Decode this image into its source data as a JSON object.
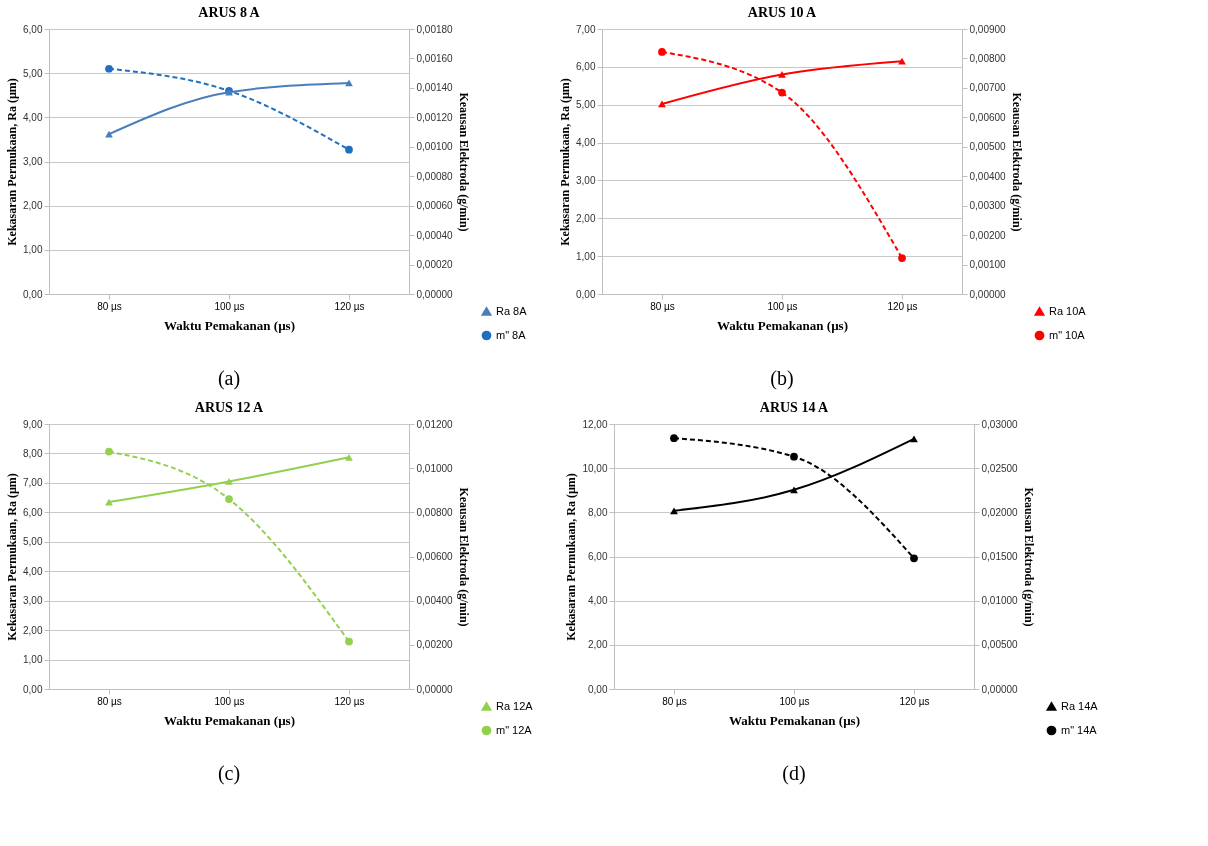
{
  "chart_data": [
    {
      "type": "line",
      "title": "ARUS 8 A",
      "xlabel": "Waktu Pemakanan (µs)",
      "ylabel": "Kekasaran Permukaan, Ra (µm)",
      "y2label": "Keausan Elektroda (g/min)",
      "categories": [
        "80 µs",
        "100 µs",
        "120 µs"
      ],
      "series": [
        {
          "name": "Ra 8A",
          "color": "#4a7ebb",
          "values": [
            3.62,
            4.57,
            4.78
          ],
          "marker": "triangle",
          "line_style": "solid"
        },
        {
          "name": "m\" 8A",
          "color": "#1f70c1",
          "values": [
            0.00153,
            0.00138,
            0.00098
          ],
          "axis": "y2",
          "marker": "circle",
          "line_style": "dashed"
        }
      ],
      "ylim": [
        0,
        6
      ],
      "yticks": [
        {
          "value": 0,
          "label": "0,00"
        },
        {
          "value": 1,
          "label": "1,00"
        },
        {
          "value": 2,
          "label": "2,00"
        },
        {
          "value": 3,
          "label": "3,00"
        },
        {
          "value": 4,
          "label": "4,00"
        },
        {
          "value": 5,
          "label": "5,00"
        },
        {
          "value": 6,
          "label": "6,00"
        }
      ],
      "y2lim": [
        0,
        0.0018
      ],
      "y2ticks": [
        {
          "value": 0,
          "label": "0,00000"
        },
        {
          "value": 0.0002,
          "label": "0,00020"
        },
        {
          "value": 0.0004,
          "label": "0,00040"
        },
        {
          "value": 0.0006,
          "label": "0,00060"
        },
        {
          "value": 0.0008,
          "label": "0,00080"
        },
        {
          "value": 0.001,
          "label": "0,00100"
        },
        {
          "value": 0.0012,
          "label": "0,00120"
        },
        {
          "value": 0.0014,
          "label": "0,00140"
        },
        {
          "value": 0.0016,
          "label": "0,00160"
        },
        {
          "value": 0.0018,
          "label": "0,00180"
        }
      ],
      "grid": "y",
      "legend": "bottom right",
      "annotations": [
        "(a)"
      ]
    },
    {
      "type": "line",
      "title": "ARUS 10 A",
      "xlabel": "Waktu Pemakanan (µs)",
      "ylabel": "Kekasaran Permukaan, Ra (µm)",
      "y2label": "Keausan Elektroda (g/min)",
      "categories": [
        "80 µs",
        "100 µs",
        "120 µs"
      ],
      "series": [
        {
          "name": "Ra 10A",
          "color": "#ff0000",
          "values": [
            5.02,
            5.8,
            6.15
          ],
          "marker": "triangle",
          "line_style": "solid"
        },
        {
          "name": "m\" 10A",
          "color": "#ff0000",
          "values": [
            0.00822,
            0.00684,
            0.00122
          ],
          "axis": "y2",
          "marker": "circle",
          "line_style": "dashed"
        }
      ],
      "ylim": [
        0,
        7
      ],
      "yticks": [
        {
          "value": 0,
          "label": "0,00"
        },
        {
          "value": 1,
          "label": "1,00"
        },
        {
          "value": 2,
          "label": "2,00"
        },
        {
          "value": 3,
          "label": "3,00"
        },
        {
          "value": 4,
          "label": "4,00"
        },
        {
          "value": 5,
          "label": "5,00"
        },
        {
          "value": 6,
          "label": "6,00"
        },
        {
          "value": 7,
          "label": "7,00"
        }
      ],
      "y2lim": [
        0,
        0.009
      ],
      "y2ticks": [
        {
          "value": 0,
          "label": "0,00000"
        },
        {
          "value": 0.001,
          "label": "0,00100"
        },
        {
          "value": 0.002,
          "label": "0,00200"
        },
        {
          "value": 0.003,
          "label": "0,00300"
        },
        {
          "value": 0.004,
          "label": "0,00400"
        },
        {
          "value": 0.005,
          "label": "0,00500"
        },
        {
          "value": 0.006,
          "label": "0,00600"
        },
        {
          "value": 0.007,
          "label": "0,00700"
        },
        {
          "value": 0.008,
          "label": "0,00800"
        },
        {
          "value": 0.009,
          "label": "0,00900"
        }
      ],
      "grid": "y",
      "legend": "bottom right",
      "annotations": [
        "(b)"
      ]
    },
    {
      "type": "line",
      "title": "ARUS 12 A",
      "xlabel": "Waktu Pemakanan (µs)",
      "ylabel": "Kekasaran Permukaan, Ra (µm)",
      "y2label": "Keausan Elektroda (g/min)",
      "categories": [
        "80 µs",
        "100 µs",
        "120 µs"
      ],
      "series": [
        {
          "name": "Ra 12A",
          "color": "#92d050",
          "values": [
            6.35,
            7.05,
            7.87
          ],
          "marker": "triangle",
          "line_style": "solid"
        },
        {
          "name": "m\" 12A",
          "color": "#92d050",
          "values": [
            0.01075,
            0.0086,
            0.00215
          ],
          "axis": "y2",
          "marker": "circle",
          "line_style": "dashed"
        }
      ],
      "ylim": [
        0,
        9
      ],
      "yticks": [
        {
          "value": 0,
          "label": "0,00"
        },
        {
          "value": 1,
          "label": "1,00"
        },
        {
          "value": 2,
          "label": "2,00"
        },
        {
          "value": 3,
          "label": "3,00"
        },
        {
          "value": 4,
          "label": "4,00"
        },
        {
          "value": 5,
          "label": "5,00"
        },
        {
          "value": 6,
          "label": "6,00"
        },
        {
          "value": 7,
          "label": "7,00"
        },
        {
          "value": 8,
          "label": "8,00"
        },
        {
          "value": 9,
          "label": "9,00"
        }
      ],
      "y2lim": [
        0,
        0.012
      ],
      "y2ticks": [
        {
          "value": 0,
          "label": "0,00000"
        },
        {
          "value": 0.002,
          "label": "0,00200"
        },
        {
          "value": 0.004,
          "label": "0,00400"
        },
        {
          "value": 0.006,
          "label": "0,00600"
        },
        {
          "value": 0.008,
          "label": "0,00800"
        },
        {
          "value": 0.01,
          "label": "0,01000"
        },
        {
          "value": 0.012,
          "label": "0,01200"
        }
      ],
      "grid": "y",
      "legend": "bottom right",
      "annotations": [
        "(c)"
      ]
    },
    {
      "type": "line",
      "title": "ARUS 14 A",
      "xlabel": "Waktu Pemakanan (µs)",
      "ylabel": "Kekasaran Permukaan, Ra (µm)",
      "y2label": "Keausan Elektroda (g/min)",
      "categories": [
        "80 µs",
        "100 µs",
        "120 µs"
      ],
      "series": [
        {
          "name": "Ra 14A",
          "color": "#000000",
          "values": [
            8.07,
            9.02,
            11.33
          ],
          "marker": "triangle",
          "line_style": "solid"
        },
        {
          "name": "m\" 14A",
          "color": "#000000",
          "values": [
            0.0284,
            0.0263,
            0.0148
          ],
          "axis": "y2",
          "marker": "circle",
          "line_style": "dashed"
        }
      ],
      "ylim": [
        0,
        12
      ],
      "yticks": [
        {
          "value": 0,
          "label": "0,00"
        },
        {
          "value": 2,
          "label": "2,00"
        },
        {
          "value": 4,
          "label": "4,00"
        },
        {
          "value": 6,
          "label": "6,00"
        },
        {
          "value": 8,
          "label": "8,00"
        },
        {
          "value": 10,
          "label": "10,00"
        },
        {
          "value": 12,
          "label": "12,00"
        }
      ],
      "y2lim": [
        0,
        0.03
      ],
      "y2ticks": [
        {
          "value": 0,
          "label": "0,00000"
        },
        {
          "value": 0.005,
          "label": "0,00500"
        },
        {
          "value": 0.01,
          "label": "0,01000"
        },
        {
          "value": 0.015,
          "label": "0,01500"
        },
        {
          "value": 0.02,
          "label": "0,02000"
        },
        {
          "value": 0.025,
          "label": "0,02500"
        },
        {
          "value": 0.03,
          "label": "0,03000"
        }
      ],
      "grid": "y",
      "legend": "bottom right",
      "annotations": [
        "(d)"
      ]
    }
  ]
}
